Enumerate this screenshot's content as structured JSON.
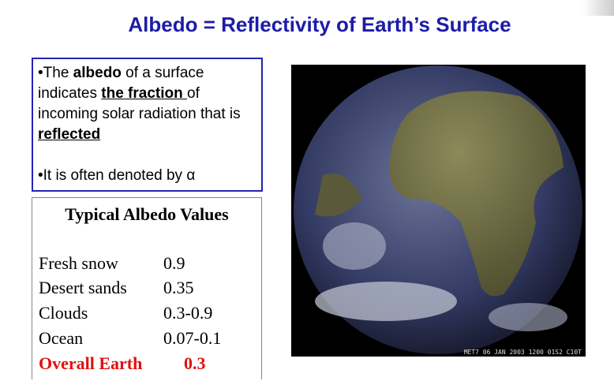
{
  "title": "Albedo = Reflectivity of Earth’s Surface",
  "bullets": [
    [
      {
        "text": "•The ",
        "style": "plain"
      },
      {
        "text": "albedo",
        "style": "bold"
      },
      {
        "text": " of a surface indicates ",
        "style": "plain"
      },
      {
        "text": "the fraction ",
        "style": "bold-underline"
      },
      {
        "text": "of incoming solar radiation that is ",
        "style": "plain"
      },
      {
        "text": "reflected",
        "style": "bold-underline"
      }
    ],
    [
      {
        "text": "•It is often denoted by ",
        "style": "plain"
      },
      {
        "text": "α",
        "style": "plain"
      }
    ]
  ],
  "table": {
    "title": "Typical Albedo Values",
    "rows": [
      [
        "Fresh snow",
        "0.9"
      ],
      [
        "Desert sands",
        "0.35"
      ],
      [
        "Clouds",
        "0.3-0.9"
      ],
      [
        "Ocean",
        "0.07-0.1"
      ],
      [
        "Overall Earth",
        "0.3"
      ]
    ],
    "highlight_row": 4
  },
  "image": {
    "caption": "MET7 06 JAN 2003 1200 01S2 C10T"
  }
}
